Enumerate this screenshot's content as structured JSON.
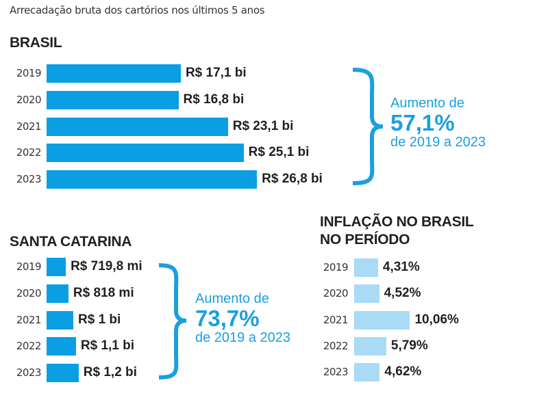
{
  "chart_data": [
    {
      "type": "bar",
      "orientation": "horizontal",
      "title": "BRASIL",
      "categories": [
        "2019",
        "2020",
        "2021",
        "2022",
        "2023"
      ],
      "values": [
        17.1,
        16.8,
        23.1,
        25.1,
        26.8
      ],
      "unit": "R$ bi",
      "data_labels": [
        "R$ 17,1 bi",
        "R$ 16,8 bi",
        "R$ 23,1 bi",
        "R$ 25,1 bi",
        "R$ 26,8 bi"
      ],
      "color": "#0a9fe3",
      "annotation": {
        "line1": "Aumento de",
        "value": "57,1%",
        "line2": "de 2019 a 2023"
      }
    },
    {
      "type": "bar",
      "orientation": "horizontal",
      "title": "SANTA CATARINA",
      "categories": [
        "2019",
        "2020",
        "2021",
        "2022",
        "2023"
      ],
      "values": [
        719.8,
        818,
        1000,
        1100,
        1200
      ],
      "unit": "R$ mi",
      "data_labels": [
        "R$ 719,8 mi",
        "R$ 818 mi",
        "R$ 1 bi",
        "R$ 1,1 bi",
        "R$ 1,2 bi"
      ],
      "color": "#0a9fe3",
      "annotation": {
        "line1": "Aumento de",
        "value": "73,7%",
        "line2": "de 2019 a 2023"
      }
    },
    {
      "type": "bar",
      "orientation": "horizontal",
      "title": "INFLAÇÃO NO BRASIL NO PERÍODO",
      "title_lines": [
        "INFLAÇÃO NO BRASIL",
        "NO PERÍODO"
      ],
      "categories": [
        "2019",
        "2020",
        "2021",
        "2022",
        "2023"
      ],
      "values": [
        4.31,
        4.52,
        10.06,
        5.79,
        4.62
      ],
      "unit": "%",
      "data_labels": [
        "4,31%",
        "4,52%",
        "10,06%",
        "5,79%",
        "4,62%"
      ],
      "color": "#a9dbf6"
    }
  ],
  "subtitle": "Arrecadação bruta dos cartórios nos últimos 5 anos",
  "accent_color": "#1a9fe0"
}
